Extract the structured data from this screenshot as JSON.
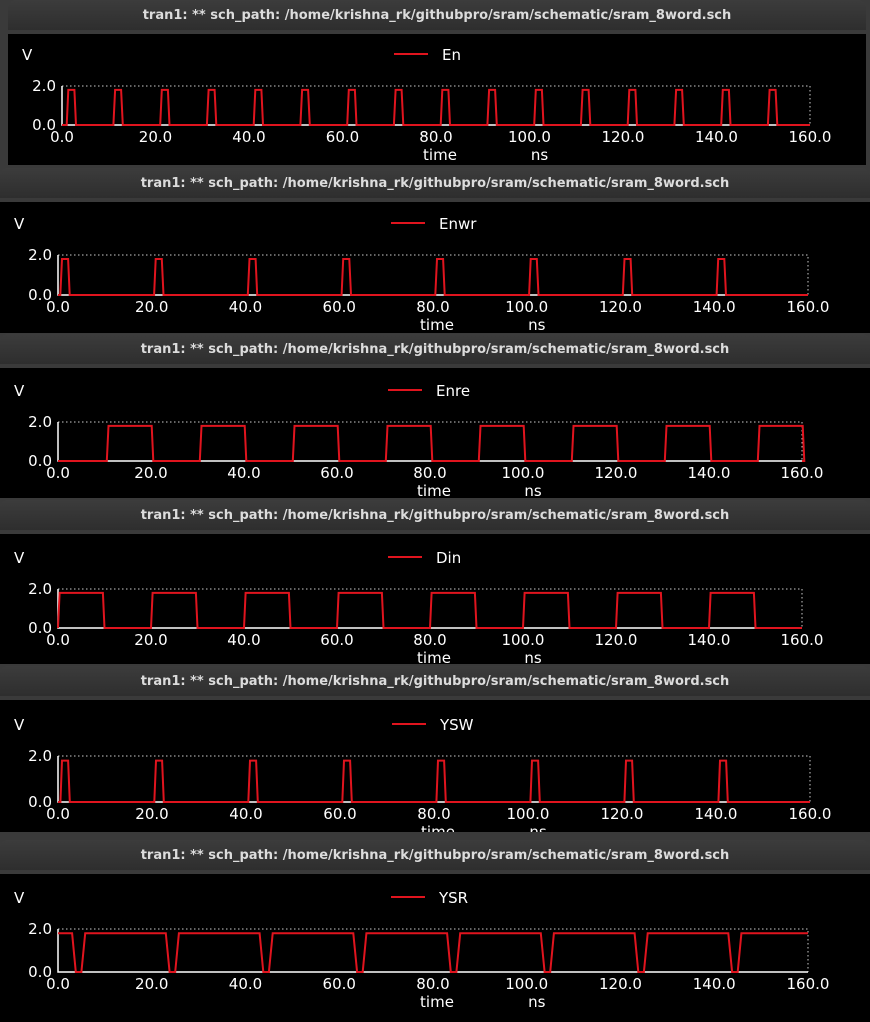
{
  "window_title": "tran1: ** sch_path: /home/krishna_rk/githubpro/sram/schematic/sram_8word.sch",
  "y_unit_label": "V",
  "y_ticks": [
    "2.0",
    "0.0"
  ],
  "x_ticks": [
    "0.0",
    "20.0",
    "40.0",
    "60.0",
    "80.0",
    "100.0",
    "120.0",
    "140.0",
    "160.0"
  ],
  "x_label": "time",
  "x_unit": "ns",
  "trace_color": "#e0141e",
  "chart_data": [
    {
      "type": "line",
      "series": [
        {
          "name": "En"
        }
      ],
      "xlim": [
        0,
        160
      ],
      "ylim": [
        0,
        2.0
      ],
      "xlabel": "time",
      "xunit": "ns",
      "ylabel": "V",
      "pulses": {
        "high": 1.8,
        "low": 0.0,
        "starts": [
          1,
          11,
          21,
          31,
          41,
          51,
          61,
          71,
          81,
          91,
          101,
          111,
          121,
          131,
          141,
          151
        ],
        "width": 2
      }
    },
    {
      "type": "line",
      "series": [
        {
          "name": "Enwr"
        }
      ],
      "xlim": [
        0,
        160
      ],
      "ylim": [
        0,
        2.0
      ],
      "xlabel": "time",
      "xunit": "ns",
      "ylabel": "V",
      "pulses": {
        "high": 1.8,
        "low": 0.0,
        "starts": [
          0.5,
          20.5,
          40.5,
          60.5,
          80.5,
          100.5,
          120.5,
          140.5
        ],
        "width": 2
      }
    },
    {
      "type": "line",
      "series": [
        {
          "name": "Enre"
        }
      ],
      "xlim": [
        0,
        160
      ],
      "ylim": [
        0,
        2.0
      ],
      "xlabel": "time",
      "xunit": "ns",
      "ylabel": "V",
      "pulses": {
        "high": 1.8,
        "low": 0.0,
        "starts": [
          10.5,
          30.5,
          50.5,
          70.5,
          90.5,
          110.5,
          130.5,
          150.5
        ],
        "width": 10
      }
    },
    {
      "type": "line",
      "series": [
        {
          "name": "Din"
        }
      ],
      "xlim": [
        0,
        160
      ],
      "ylim": [
        0,
        2.0
      ],
      "xlabel": "time",
      "xunit": "ns",
      "ylabel": "V",
      "pulses": {
        "high": 1.8,
        "low": 0.0,
        "starts": [
          0,
          20,
          40,
          60,
          80,
          100,
          120,
          140
        ],
        "width": 10
      }
    },
    {
      "type": "line",
      "series": [
        {
          "name": "YSW"
        }
      ],
      "xlim": [
        0,
        160
      ],
      "ylim": [
        0,
        2.0
      ],
      "xlabel": "time",
      "xunit": "ns",
      "ylabel": "V",
      "pulses": {
        "high": 1.8,
        "low": 0.0,
        "starts": [
          0.5,
          20.5,
          40.5,
          60.5,
          80.5,
          100.5,
          120.5,
          140.5
        ],
        "width": 2
      }
    },
    {
      "type": "line",
      "series": [
        {
          "name": "YSR"
        }
      ],
      "xlim": [
        0,
        160
      ],
      "ylim": [
        0,
        2.0
      ],
      "xlabel": "time",
      "xunit": "ns",
      "ylabel": "V",
      "dips": {
        "high": 1.8,
        "low": 0.0,
        "starts": [
          3,
          23,
          43,
          63,
          83,
          103,
          123,
          143
        ],
        "width": 2
      }
    }
  ]
}
